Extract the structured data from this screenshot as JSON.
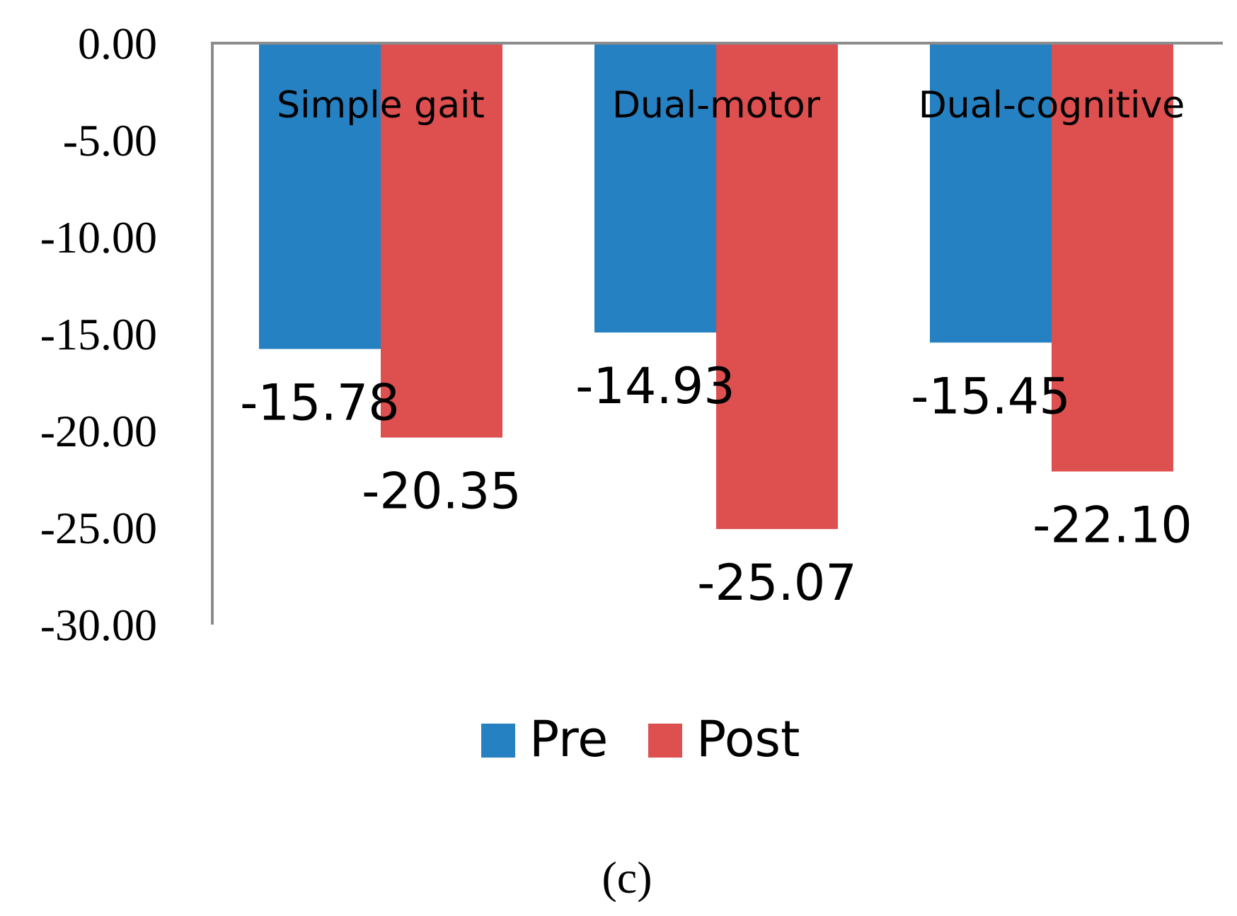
{
  "chart_data": {
    "type": "bar",
    "categories": [
      "Simple gait",
      "Dual-motor",
      "Dual-cognitive"
    ],
    "series": [
      {
        "name": "Pre",
        "color": "#2681C2",
        "values": [
          -15.78,
          -14.93,
          -15.45
        ],
        "labels": [
          "-15.78",
          "-14.93",
          "-15.45"
        ]
      },
      {
        "name": "Post",
        "color": "#DE4F4F",
        "values": [
          -20.35,
          -25.07,
          -22.1
        ],
        "labels": [
          "-20.35",
          "-25.07",
          "-22.10"
        ]
      }
    ],
    "ylim": [
      -30,
      0
    ],
    "yticks": [
      0,
      -5,
      -10,
      -15,
      -20,
      -25,
      -30
    ],
    "ytick_labels": [
      "0.00",
      "-5.00",
      "-10.00",
      "-15.00",
      "-20.00",
      "-25.00",
      "-30.00"
    ],
    "legend_position": "bottom",
    "grid": false,
    "axis_color": "#8C8C8C",
    "panel_label": "(c)"
  }
}
